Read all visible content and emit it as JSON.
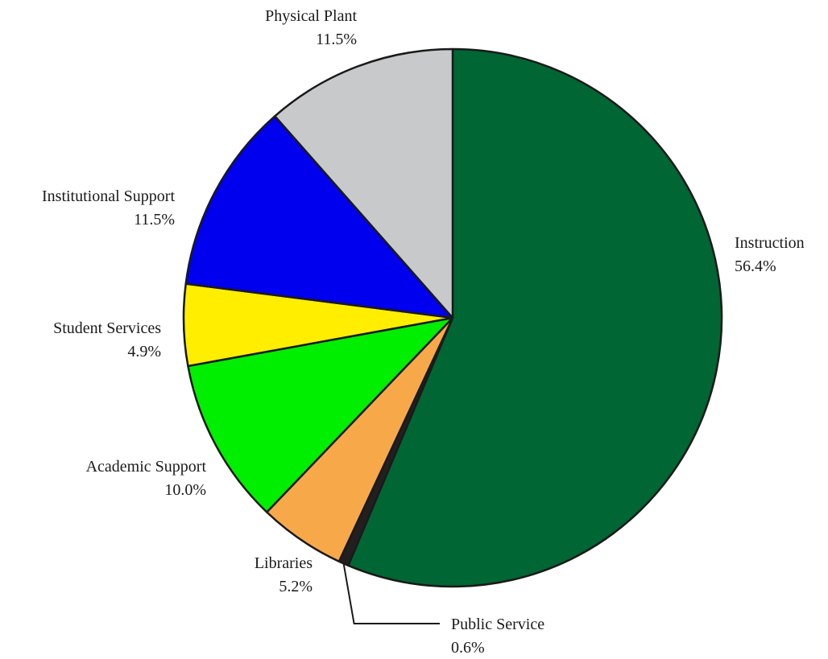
{
  "chart_data": {
    "type": "pie",
    "start_angle_deg": 0,
    "direction": "clockwise",
    "slices": [
      {
        "label": "Instruction",
        "value_label": "56.4%",
        "value": 56.4,
        "color": "#006633"
      },
      {
        "label": "Public Service",
        "value_label": "0.6%",
        "value": 0.6,
        "color": "#231f20"
      },
      {
        "label": "Libraries",
        "value_label": "5.2%",
        "value": 5.2,
        "color": "#f7a94a"
      },
      {
        "label": "Academic Support",
        "value_label": "10.0%",
        "value": 10.0,
        "color": "#00ee00"
      },
      {
        "label": "Student Services",
        "value_label": "4.9%",
        "value": 4.9,
        "color": "#ffee00"
      },
      {
        "label": "Institutional Support",
        "value_label": "11.5%",
        "value": 11.5,
        "color": "#0000ee"
      },
      {
        "label": "Physical Plant",
        "value_label": "11.5%",
        "value": 11.5,
        "color": "#c8c9cb"
      }
    ]
  }
}
